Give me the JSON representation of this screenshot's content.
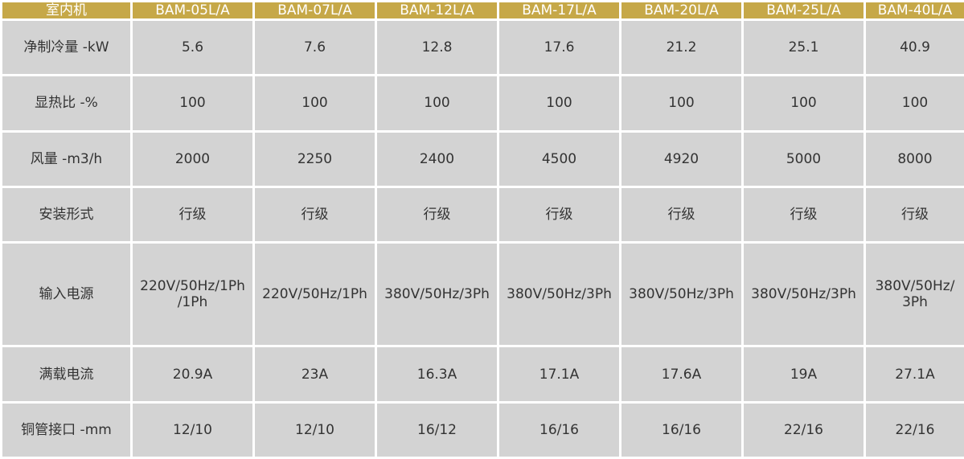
{
  "table": {
    "header": [
      "室内机",
      "BAM-05L/A",
      "BAM-07L/A",
      "BAM-12L/A",
      "BAM-17L/A",
      "BAM-20L/A",
      "BAM-25L/A",
      "BAM-40L/A"
    ],
    "rows": [
      [
        "净制冷量 -kW",
        "5.6",
        "7.6",
        "12.8",
        "17.6",
        "21.2",
        "25.1",
        "40.9"
      ],
      [
        "显热比 -%",
        "100",
        "100",
        "100",
        "100",
        "100",
        "100",
        "100"
      ],
      [
        "风量 -m3/h",
        "2000",
        "2250",
        "2400",
        "4500",
        "4920",
        "5000",
        "8000"
      ],
      [
        "安装形式",
        "行级",
        "行级",
        "行级",
        "行级",
        "行级",
        "行级",
        "行级"
      ],
      [
        "输入电源",
        "220V/50Hz/1Ph\n/1Ph",
        "220V/50Hz/1Ph",
        "380V/50Hz/3Ph",
        "380V/50Hz/3Ph",
        "380V/50Hz/3Ph",
        "380V/50Hz/3Ph",
        "380V/50Hz/\n3Ph"
      ],
      [
        "满载电流",
        "20.9A",
        "23A",
        "16.3A",
        "17.1A",
        "17.6A",
        "19A",
        "27.1A"
      ],
      [
        "铜管接口 -mm",
        "12/10",
        "12/10",
        "16/12",
        "16/16",
        "16/16",
        "22/16",
        "22/16"
      ]
    ]
  }
}
